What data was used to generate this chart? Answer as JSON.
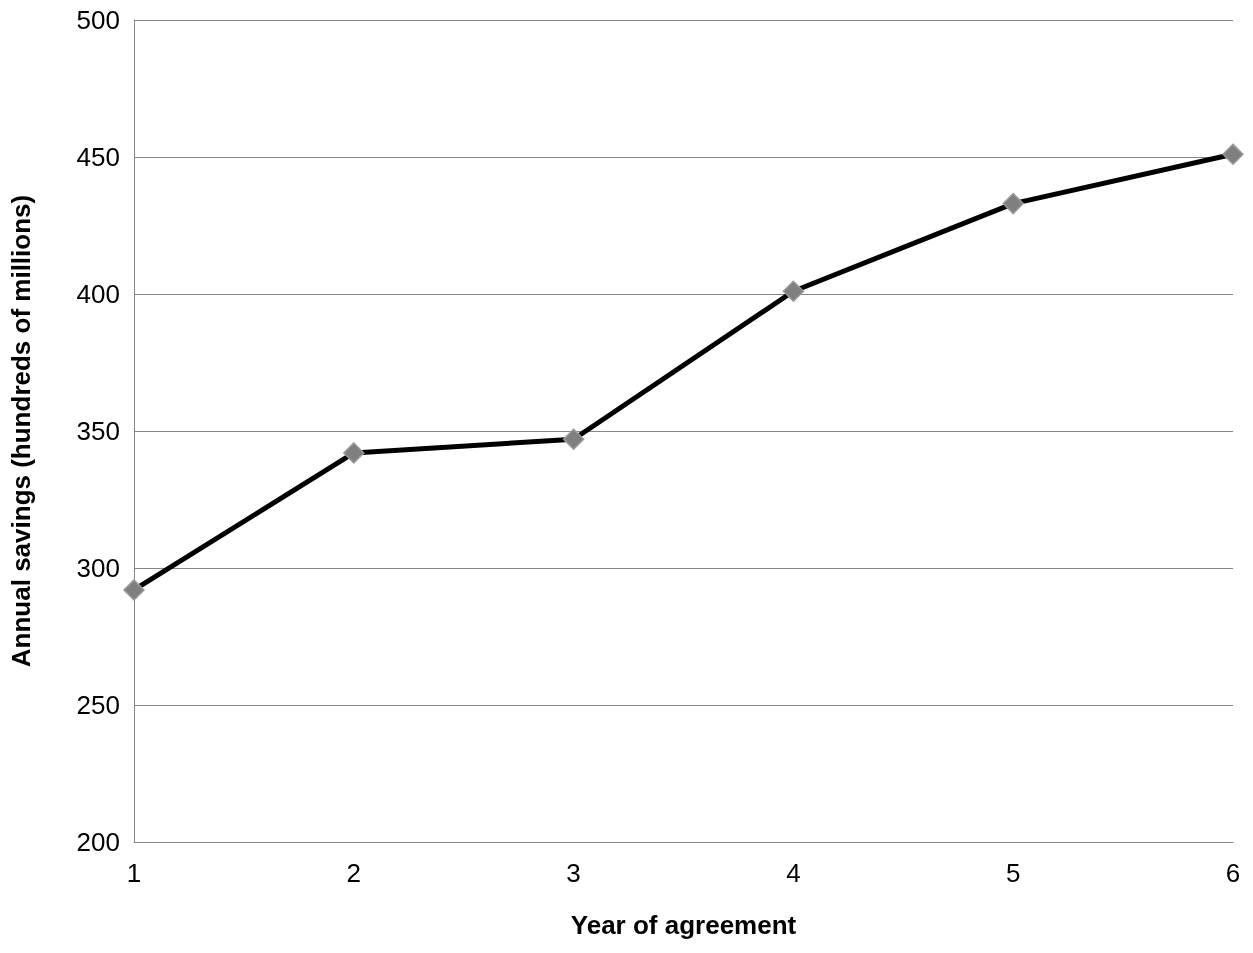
{
  "chart_data": {
    "type": "line",
    "xlabel": "Year of agreement",
    "ylabel": "Annual savings (hundreds of millions)",
    "categories": [
      "1",
      "2",
      "3",
      "4",
      "5",
      "6"
    ],
    "series": [
      {
        "color": "#000000",
        "values": [
          292,
          342,
          347,
          401,
          433,
          451
        ]
      }
    ],
    "ylim": [
      200,
      500
    ],
    "yticks": [
      200,
      250,
      300,
      350,
      400,
      450,
      500
    ],
    "grid": "y",
    "marker": "diamond",
    "line_style": "solid"
  }
}
